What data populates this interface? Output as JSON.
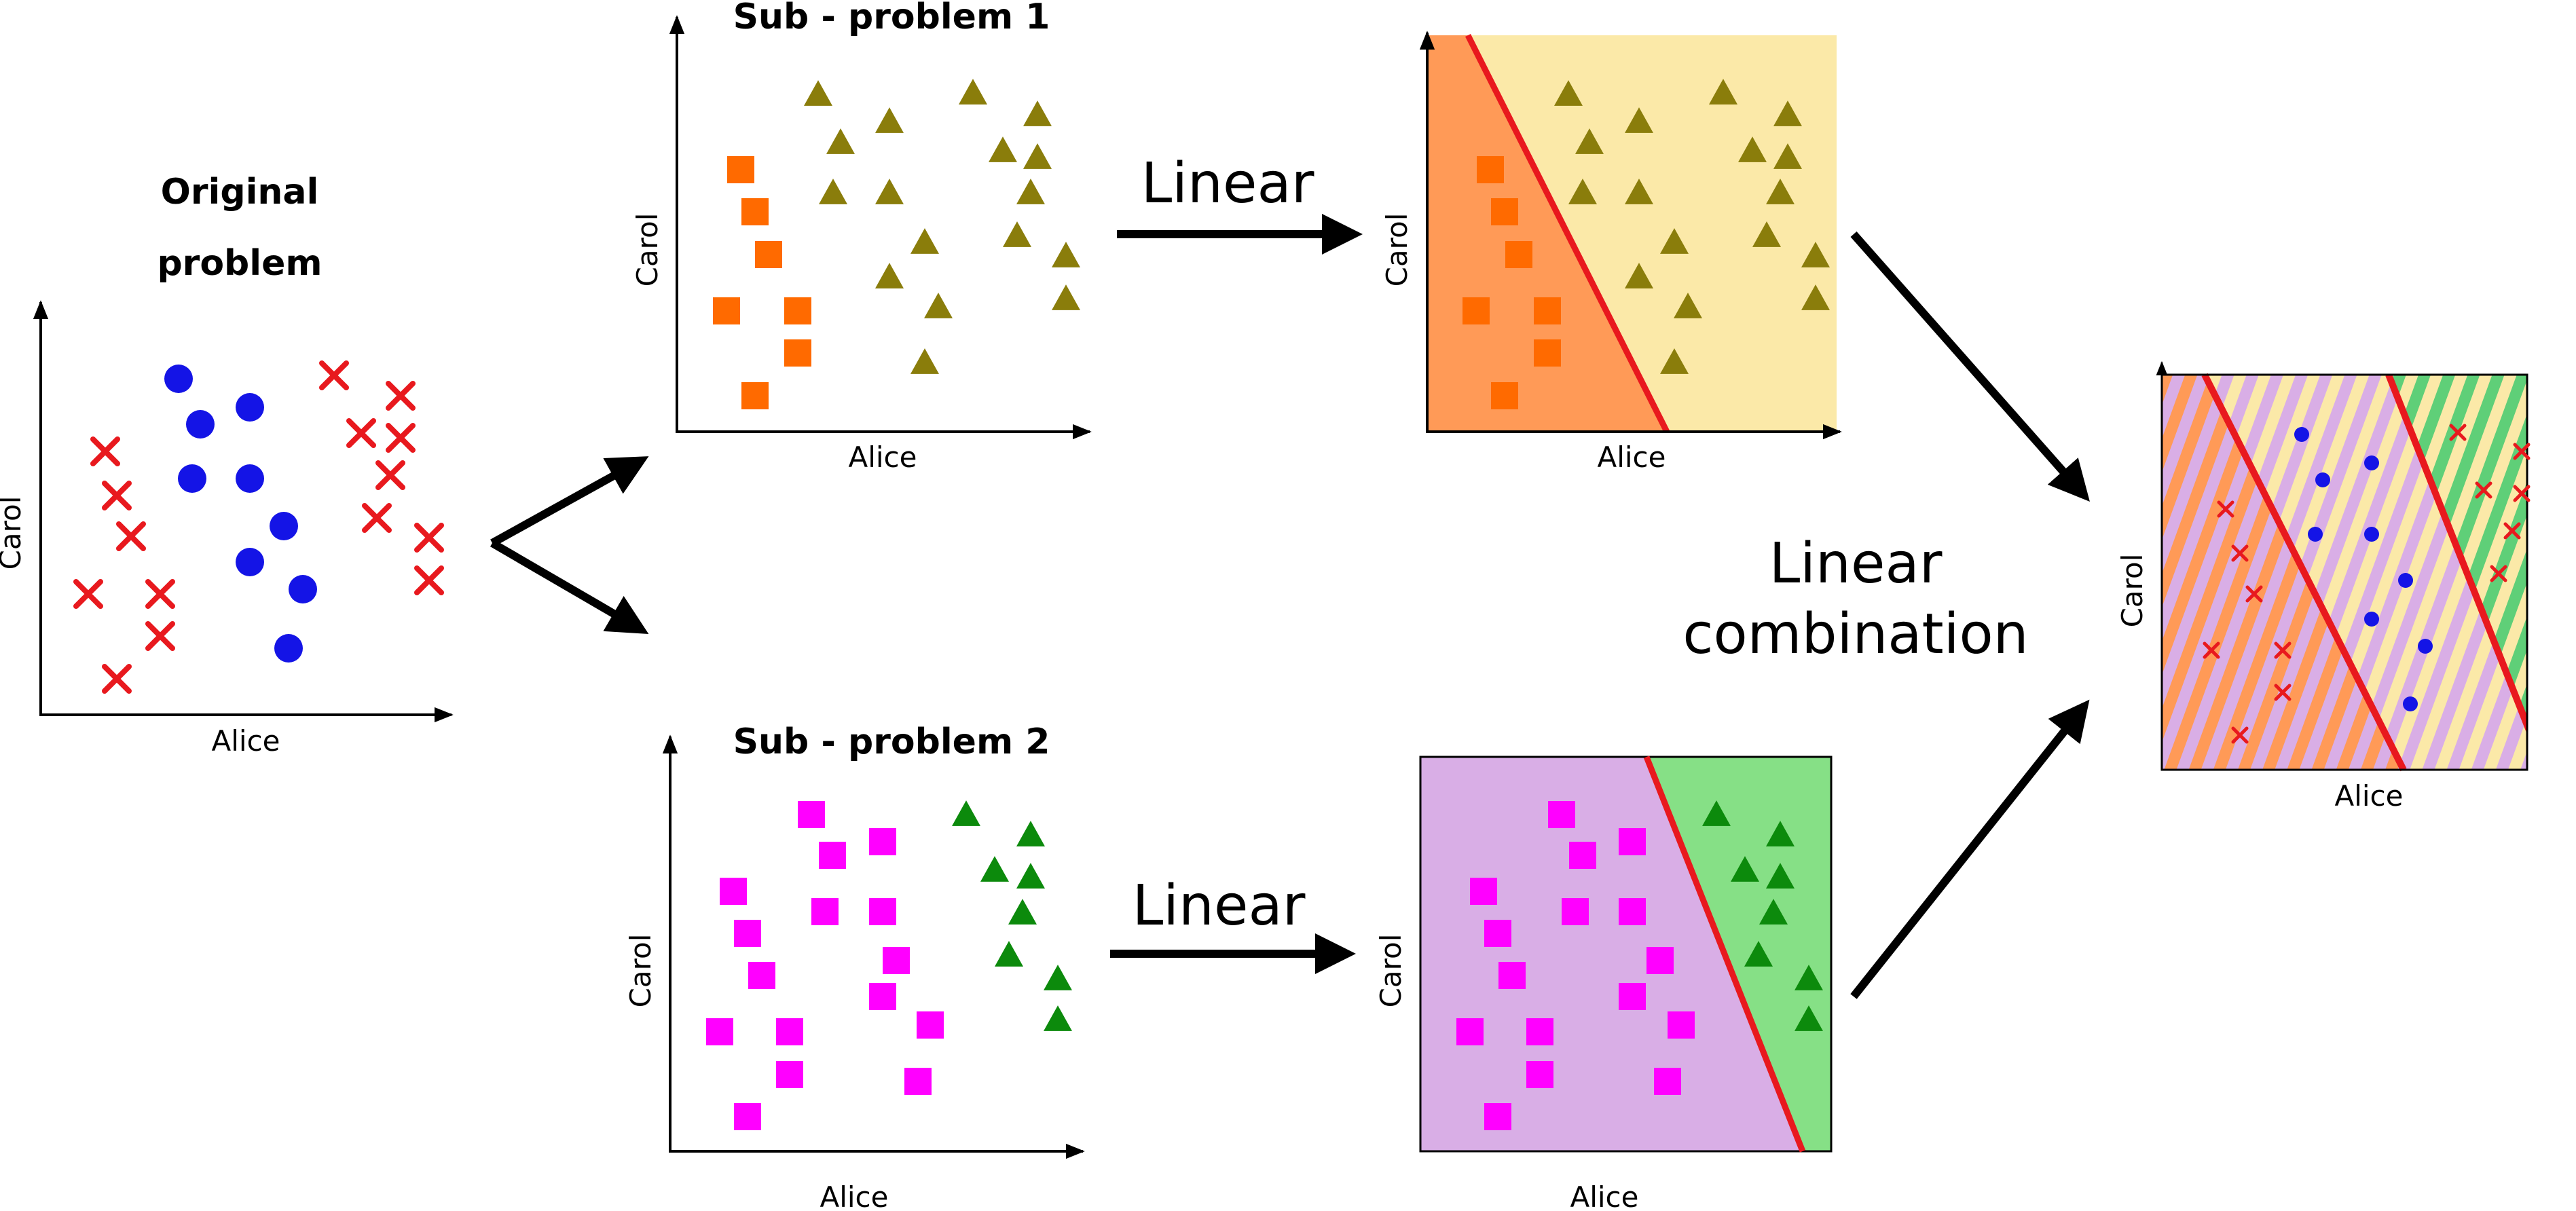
{
  "original": {
    "title_line1": "Original",
    "title_line2": "problem",
    "xlabel": "Alice",
    "ylabel": "Carol"
  },
  "sub1": {
    "title": "Sub - problem 1",
    "xlabel": "Alice",
    "ylabel": "Carol"
  },
  "sub1_linear": {
    "xlabel": "Alice",
    "ylabel": "Carol"
  },
  "sub2": {
    "title": "Sub - problem 2",
    "xlabel": "Alice",
    "ylabel": "Carol"
  },
  "sub2_linear": {
    "xlabel": "Alice",
    "ylabel": "Carol"
  },
  "combined": {
    "xlabel": "Alice",
    "ylabel": "Carol"
  },
  "arrows": {
    "linear_top": "Linear",
    "linear_bottom": "Linear",
    "combination_line1": "Linear",
    "combination_line2": "combination"
  },
  "colors": {
    "cross": "#e8191e",
    "circle": "#1414e6",
    "orange_square": "#ff6a00",
    "olive_triangle": "#8a7d0b",
    "magenta_square": "#ff00ff",
    "green_triangle": "#0c8a0c",
    "orange_region": "#ff9a57",
    "yellow_region": "#fbe9a8",
    "purple_region": "#d9aee6",
    "green_region": "#86e086",
    "boundary": "#e8191e"
  }
}
